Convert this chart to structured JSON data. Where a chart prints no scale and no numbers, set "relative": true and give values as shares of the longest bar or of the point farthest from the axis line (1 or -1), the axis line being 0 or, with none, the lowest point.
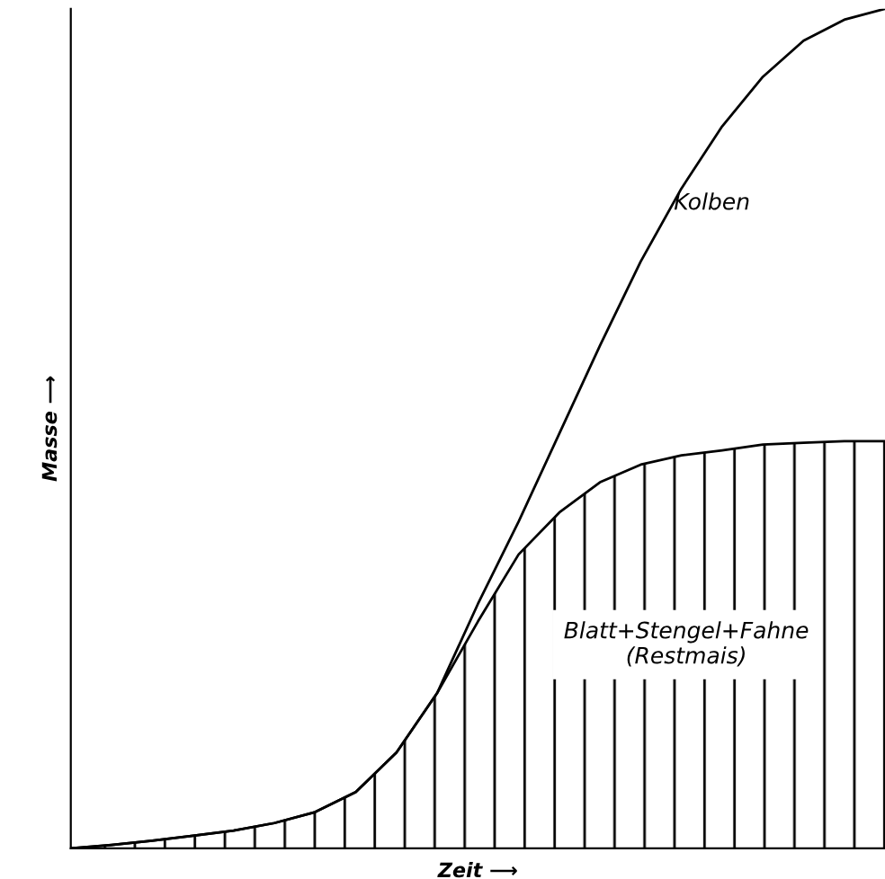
{
  "chart_data": {
    "type": "area",
    "relative": true,
    "stacked": true,
    "xlabel": "Zeit ⟶",
    "ylabel": "Masse ⟶",
    "legend": false,
    "grid": false,
    "categories": [
      null,
      null,
      null,
      null,
      null,
      null,
      null,
      null,
      null,
      null,
      null,
      null,
      null,
      null,
      null,
      null,
      null,
      null,
      null,
      null,
      null
    ],
    "series": [
      {
        "name": "Blatt+Stengel+Fahne\n(Restmais)",
        "color": "#000000",
        "values": [
          0,
          0.004,
          0.009,
          0.015,
          0.021,
          0.03,
          0.043,
          0.067,
          0.114,
          0.185,
          0.27,
          0.35,
          0.4,
          0.436,
          0.457,
          0.468,
          0.474,
          0.481,
          0.483,
          0.485,
          0.485
        ]
      },
      {
        "name": "Kolben",
        "color": "#000000",
        "values": [
          0,
          0,
          0,
          0,
          0,
          0,
          0,
          0,
          0,
          0,
          0.021,
          0.039,
          0.094,
          0.163,
          0.242,
          0.318,
          0.386,
          0.438,
          0.479,
          0.502,
          0.515
        ]
      }
    ]
  }
}
